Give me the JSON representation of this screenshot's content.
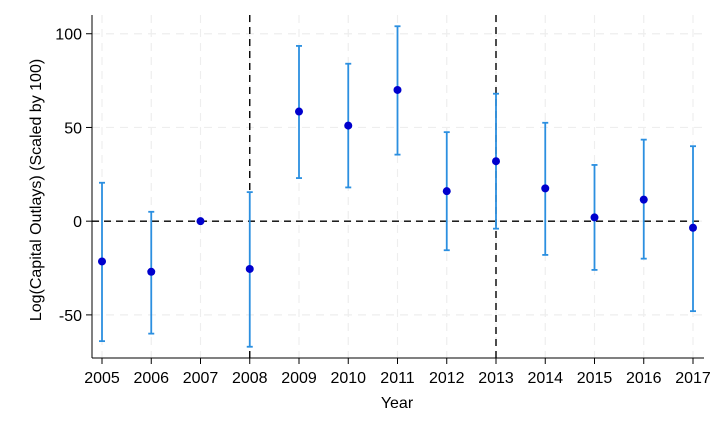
{
  "chart_data": {
    "type": "scatter",
    "variant": "coefficient plot with 95% confidence intervals",
    "title": "",
    "xlabel": "Year",
    "ylabel": "Log(Capital Outlays) (Scaled by 100)",
    "xlim": [
      2005,
      2017
    ],
    "ylim": [
      -73,
      110
    ],
    "x_ticks": [
      2005,
      2006,
      2007,
      2008,
      2009,
      2010,
      2011,
      2012,
      2013,
      2014,
      2015,
      2016,
      2017
    ],
    "y_ticks": [
      -50,
      0,
      50,
      100
    ],
    "grid": true,
    "reference_lines": {
      "horizontal": [
        0
      ],
      "vertical": [
        2008,
        2013
      ]
    },
    "colors": {
      "point": "#0000cd",
      "error_bar": "#2b8fe0",
      "reference_line": "#000000",
      "grid": "#eeeeee"
    },
    "series": [
      {
        "x": [
          2005,
          2006,
          2007,
          2008,
          2009,
          2010,
          2011,
          2012,
          2013,
          2014,
          2015,
          2016,
          2017
        ],
        "estimate": [
          -21.5,
          -27,
          0,
          -25.5,
          58.5,
          51,
          70,
          16,
          32,
          17.5,
          2,
          11.5,
          -3.5
        ],
        "ci_lower": [
          -64,
          -60,
          0,
          -67,
          23,
          18,
          35.5,
          -15.5,
          -4,
          -18,
          -26,
          -20,
          -48
        ],
        "ci_upper": [
          20.5,
          5,
          0,
          15.5,
          93.5,
          84,
          104,
          47.5,
          68,
          52.5,
          30,
          43.5,
          40
        ]
      }
    ]
  }
}
